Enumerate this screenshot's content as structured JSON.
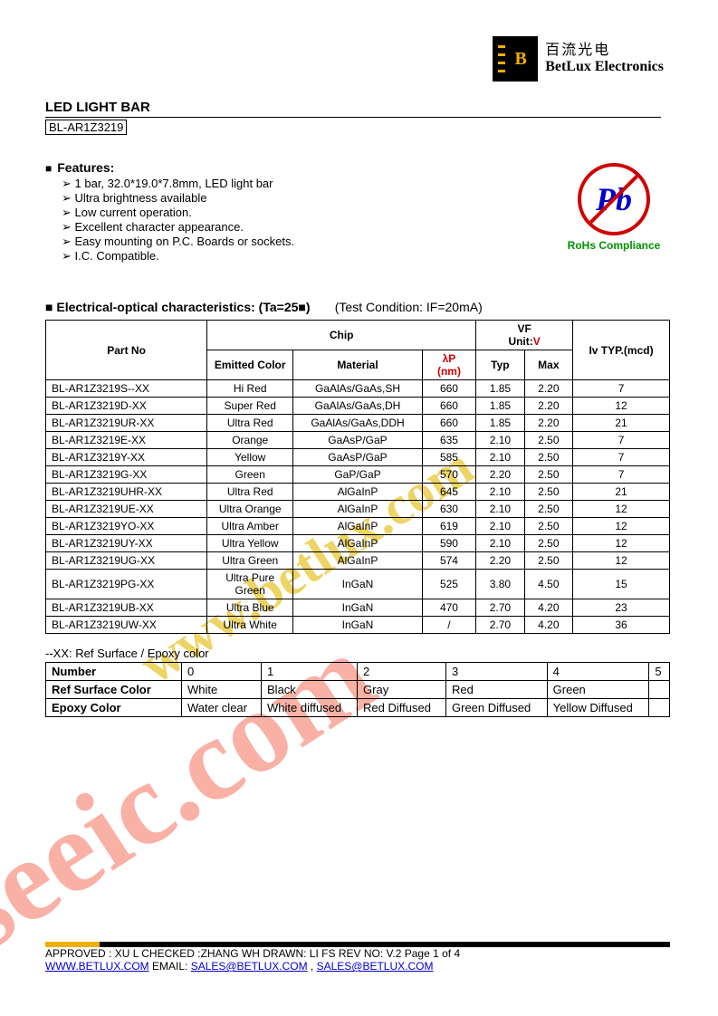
{
  "header": {
    "chinese": "百流光电",
    "english": "BetLux Electronics",
    "title": "LED LIGHT BAR",
    "part": "BL-AR1Z3219"
  },
  "features": {
    "heading": "Features:",
    "items": [
      "1 bar, 32.0*19.0*7.8mm, LED light bar",
      "Ultra brightness available",
      "Low current operation.",
      "Excellent character appearance.",
      "Easy mounting on P.C. Boards or sockets.",
      "I.C. Compatible."
    ]
  },
  "rohs": {
    "pb": "Pb",
    "text": "RoHs Compliance"
  },
  "spec": {
    "heading": "Electrical-optical characteristics: (Ta=25■)",
    "condition": "(Test Condition: IF=20mA)",
    "headers": {
      "partno": "Part No",
      "chip": "Chip",
      "emitted": "Emitted Color",
      "material": "Material",
      "lambda": "λP",
      "nm": "(nm)",
      "vf": "VF",
      "unit": "Unit:",
      "v": "V",
      "typ": "Typ",
      "max": "Max",
      "iv": "Iv TYP.(mcd)"
    },
    "rows": [
      {
        "part": "BL-AR1Z3219S--XX",
        "color": "Hi Red",
        "material": "GaAlAs/GaAs,SH",
        "nm": "660",
        "typ": "1.85",
        "max": "2.20",
        "iv": "7"
      },
      {
        "part": "BL-AR1Z3219D-XX",
        "color": "Super Red",
        "material": "GaAlAs/GaAs,DH",
        "nm": "660",
        "typ": "1.85",
        "max": "2.20",
        "iv": "12"
      },
      {
        "part": "BL-AR1Z3219UR-XX",
        "color": "Ultra Red",
        "material": "GaAlAs/GaAs,DDH",
        "nm": "660",
        "typ": "1.85",
        "max": "2.20",
        "iv": "21"
      },
      {
        "part": "BL-AR1Z3219E-XX",
        "color": "Orange",
        "material": "GaAsP/GaP",
        "nm": "635",
        "typ": "2.10",
        "max": "2.50",
        "iv": "7"
      },
      {
        "part": "BL-AR1Z3219Y-XX",
        "color": "Yellow",
        "material": "GaAsP/GaP",
        "nm": "585",
        "typ": "2.10",
        "max": "2.50",
        "iv": "7"
      },
      {
        "part": "BL-AR1Z3219G-XX",
        "color": "Green",
        "material": "GaP/GaP",
        "nm": "570",
        "typ": "2.20",
        "max": "2.50",
        "iv": "7"
      },
      {
        "part": "BL-AR1Z3219UHR-XX",
        "color": "Ultra Red",
        "material": "AlGaInP",
        "nm": "645",
        "typ": "2.10",
        "max": "2.50",
        "iv": "21"
      },
      {
        "part": "BL-AR1Z3219UE-XX",
        "color": "Ultra Orange",
        "material": "AlGaInP",
        "nm": "630",
        "typ": "2.10",
        "max": "2.50",
        "iv": "12"
      },
      {
        "part": "BL-AR1Z3219YO-XX",
        "color": "Ultra Amber",
        "material": "AlGaInP",
        "nm": "619",
        "typ": "2.10",
        "max": "2.50",
        "iv": "12"
      },
      {
        "part": "BL-AR1Z3219UY-XX",
        "color": "Ultra Yellow",
        "material": "AlGaInP",
        "nm": "590",
        "typ": "2.10",
        "max": "2.50",
        "iv": "12"
      },
      {
        "part": "BL-AR1Z3219UG-XX",
        "color": "Ultra Green",
        "material": "AlGaInP",
        "nm": "574",
        "typ": "2.20",
        "max": "2.50",
        "iv": "12"
      },
      {
        "part": "BL-AR1Z3219PG-XX",
        "color": "Ultra Pure Green",
        "material": "InGaN",
        "nm": "525",
        "typ": "3.80",
        "max": "4.50",
        "iv": "15"
      },
      {
        "part": "BL-AR1Z3219UB-XX",
        "color": "Ultra Blue",
        "material": "InGaN",
        "nm": "470",
        "typ": "2.70",
        "max": "4.20",
        "iv": "23"
      },
      {
        "part": "BL-AR1Z3219UW-XX",
        "color": "Ultra White",
        "material": "InGaN",
        "nm": "/",
        "typ": "2.70",
        "max": "4.20",
        "iv": "36"
      }
    ]
  },
  "ref": {
    "note": "--XX: Ref Surface / Epoxy color",
    "headers": [
      "Number",
      "0",
      "1",
      "2",
      "3",
      "4",
      "5"
    ],
    "row1_label": "Ref Surface Color",
    "row1": [
      "White",
      "Black",
      "Gray",
      "Red",
      "Green",
      ""
    ],
    "row2_label": "Epoxy Color",
    "row2": [
      "Water clear",
      "White diffused",
      "Red Diffused",
      "Green Diffused",
      "Yellow Diffused",
      ""
    ]
  },
  "footer": {
    "line1": "APPROVED : XU L    CHECKED :ZHANG WH    DRAWN: LI FS       REV NO: V.2       Page 1 of 4",
    "url": "WWW.BETLUX.COM",
    "email_label": "     EMAIL: ",
    "email1": "SALES@BETLUX.COM",
    "sep": " , ",
    "email2": "SALES@BETLUX.COM"
  },
  "watermarks": {
    "big": "iseeic.com",
    "mid": "www.betlux.com"
  },
  "colors": {
    "red": "#d00000",
    "blue": "#0000cc",
    "green": "#009000",
    "yellow": "#f0b000",
    "wm_red": "#f2513a",
    "wm_yel": "#e8c632"
  }
}
